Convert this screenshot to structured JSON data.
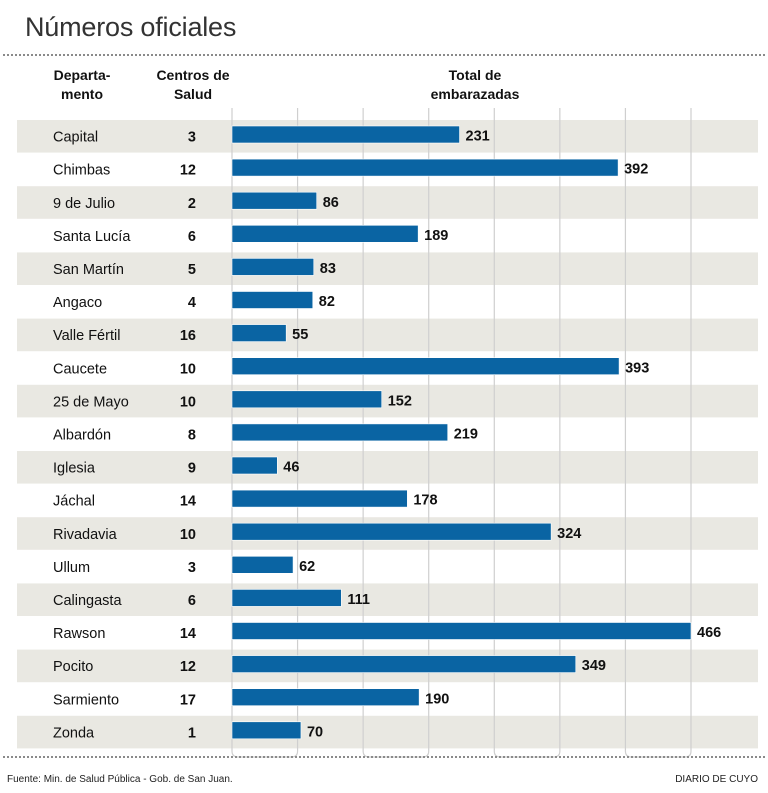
{
  "title": "Números oficiales",
  "headers": {
    "departamento_line1": "Departa-",
    "departamento_line2": "mento",
    "centros_line1": "Centros de",
    "centros_line2": "Salud",
    "total_line1": "Total de",
    "total_line2": "embarazadas"
  },
  "footer": {
    "source": "Fuente: Min. de Salud Pública - Gob. de San Juan.",
    "brand": "DIARIO DE CUYO"
  },
  "colors": {
    "bar": "#0a64a3",
    "band": "#e9e8e2",
    "grid": "#cfcfcf"
  },
  "chart_data": {
    "type": "bar",
    "orientation": "horizontal",
    "title": "Números oficiales",
    "xlabel": "Total de embarazadas",
    "ylabel": "Departamento",
    "xlim": [
      0,
      466
    ],
    "grid": true,
    "legend": "none",
    "categories": [
      "Capital",
      "Chimbas",
      "9 de Julio",
      "Santa Lucía",
      "San Martín",
      "Angaco",
      "Valle Fértil",
      "Caucete",
      "25 de Mayo",
      "Albardón",
      "Iglesia",
      "Jáchal",
      "Rivadavia",
      "Ullum",
      "Calingasta",
      "Rawson",
      "Pocito",
      "Sarmiento",
      "Zonda"
    ],
    "centros_de_salud": [
      3,
      12,
      2,
      6,
      5,
      4,
      16,
      10,
      10,
      8,
      9,
      14,
      10,
      3,
      6,
      14,
      12,
      17,
      1
    ],
    "series": [
      {
        "name": "Total de embarazadas",
        "values": [
          231,
          392,
          86,
          189,
          83,
          82,
          55,
          393,
          152,
          219,
          46,
          178,
          324,
          62,
          111,
          466,
          349,
          190,
          70
        ]
      }
    ]
  }
}
